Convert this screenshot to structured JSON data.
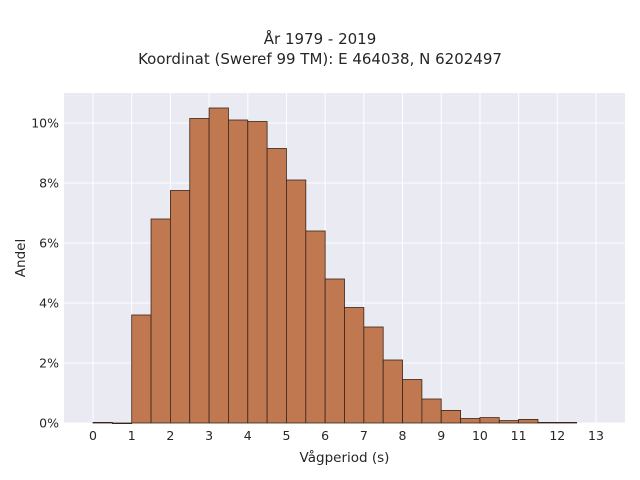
{
  "chart_data": {
    "type": "bar",
    "title": "År 1979 - 2019",
    "subtitle": "Koordinat (Sweref 99 TM): E 464038, N 6202497",
    "xlabel": "Vågperiod (s)",
    "ylabel": "Andel",
    "xlim": [
      -0.75,
      13.75
    ],
    "ylim": [
      0,
      0.11
    ],
    "x_ticks": [
      0,
      1,
      2,
      3,
      4,
      5,
      6,
      7,
      8,
      9,
      10,
      11,
      12,
      13
    ],
    "x_tick_labels": [
      "0",
      "1",
      "2",
      "3",
      "4",
      "5",
      "6",
      "7",
      "8",
      "9",
      "10",
      "11",
      "12",
      "13"
    ],
    "y_ticks": [
      0,
      0.02,
      0.04,
      0.06,
      0.08,
      0.1
    ],
    "y_tick_labels": [
      "0%",
      "2%",
      "4%",
      "6%",
      "8%",
      "10%"
    ],
    "bin_width": 0.5,
    "bins": [
      {
        "x0": 0.0,
        "value": 0.0002
      },
      {
        "x0": 0.5,
        "value": 0.0
      },
      {
        "x0": 1.0,
        "value": 0.036
      },
      {
        "x0": 1.5,
        "value": 0.068
      },
      {
        "x0": 2.0,
        "value": 0.0775
      },
      {
        "x0": 2.5,
        "value": 0.1015
      },
      {
        "x0": 3.0,
        "value": 0.105
      },
      {
        "x0": 3.5,
        "value": 0.101
      },
      {
        "x0": 4.0,
        "value": 0.1005
      },
      {
        "x0": 4.5,
        "value": 0.0915
      },
      {
        "x0": 5.0,
        "value": 0.081
      },
      {
        "x0": 5.5,
        "value": 0.064
      },
      {
        "x0": 6.0,
        "value": 0.048
      },
      {
        "x0": 6.5,
        "value": 0.0385
      },
      {
        "x0": 7.0,
        "value": 0.032
      },
      {
        "x0": 7.5,
        "value": 0.021
      },
      {
        "x0": 8.0,
        "value": 0.0145
      },
      {
        "x0": 8.5,
        "value": 0.008
      },
      {
        "x0": 9.0,
        "value": 0.0042
      },
      {
        "x0": 9.5,
        "value": 0.0015
      },
      {
        "x0": 10.0,
        "value": 0.0018
      },
      {
        "x0": 10.5,
        "value": 0.0008
      },
      {
        "x0": 11.0,
        "value": 0.0012
      },
      {
        "x0": 11.5,
        "value": 0.0002
      },
      {
        "x0": 12.0,
        "value": 0.0002
      }
    ],
    "grid": true,
    "legend": "none",
    "bar_color": "#c07850",
    "bar_edge_color": "#3a2418",
    "plot_background": "#eaeaf2",
    "grid_color": "#ffffff"
  }
}
